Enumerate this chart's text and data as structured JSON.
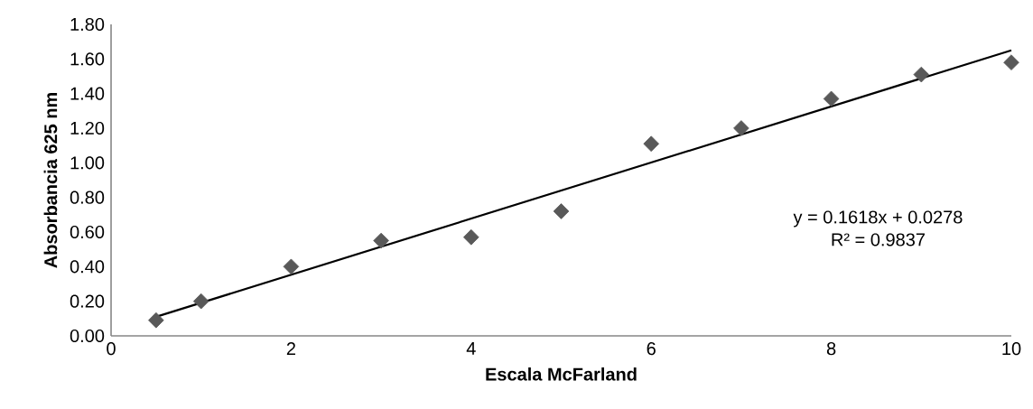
{
  "chart_data": {
    "type": "scatter",
    "marker": "diamond",
    "xlabel": "Escala McFarland",
    "ylabel": "Absorbancia 625 nm",
    "xlim": [
      0,
      10
    ],
    "xticks": [
      0,
      2,
      4,
      6,
      8,
      10
    ],
    "ylim": [
      0,
      1.8
    ],
    "yticks": [
      {
        "value": 0,
        "label": "0.00"
      },
      {
        "value": 0.2,
        "label": "0.20"
      },
      {
        "value": 0.4,
        "label": "0.40"
      },
      {
        "value": 0.6,
        "label": "0.60"
      },
      {
        "value": 0.8,
        "label": "0.80"
      },
      {
        "value": 1.0,
        "label": "1.00"
      },
      {
        "value": 1.2,
        "label": "1.20"
      },
      {
        "value": 1.4,
        "label": "1.40"
      },
      {
        "value": 1.6,
        "label": "1.60"
      },
      {
        "value": 1.8,
        "label": "1.80"
      }
    ],
    "x": [
      0.5,
      1,
      2,
      3,
      4,
      5,
      6,
      7,
      8,
      9,
      10
    ],
    "series": [
      {
        "color": "#595959",
        "values": [
          0.09,
          0.2,
          0.4,
          0.55,
          0.57,
          0.72,
          1.11,
          1.2,
          1.37,
          1.51,
          1.58
        ]
      },
      {
        "type": "line",
        "marker": "none",
        "line_style": "solid",
        "color": "#000000",
        "x": [
          0.5,
          10
        ],
        "values": [
          0.11,
          1.65
        ]
      }
    ],
    "annotations": [
      "y = 0.1618x + 0.0278",
      "R² = 0.9837"
    ]
  }
}
